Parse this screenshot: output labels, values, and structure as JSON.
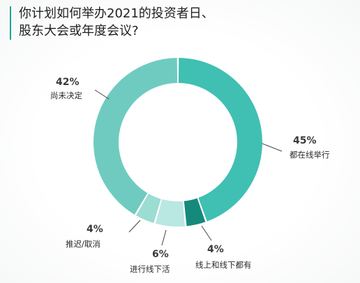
{
  "title": {
    "line1": "你计划如何举办2021的投资者日、",
    "line2": "股东大会或年度会议?"
  },
  "chart_data": {
    "type": "pie",
    "donut": true,
    "title": "你计划如何举办2021的投资者日、股东大会或年度会议?",
    "slices": [
      {
        "key": "online",
        "label": "都在线举行",
        "value": 45,
        "pct_text": "45%",
        "color": "#40c0b2"
      },
      {
        "key": "hybrid",
        "label": "线上和线下都有",
        "value": 4,
        "pct_text": "4%",
        "color": "#158a7c"
      },
      {
        "key": "offline",
        "label": "进行线下活",
        "value": 6,
        "pct_text": "6%",
        "color": "#b9e7e1"
      },
      {
        "key": "postponed",
        "label": "推迟/取消",
        "value": 4,
        "pct_text": "4%",
        "color": "#9bdcd3"
      },
      {
        "key": "undecided",
        "label": "尚未决定",
        "value": 42,
        "pct_text": "42%",
        "color": "#6fcbc0"
      }
    ]
  }
}
